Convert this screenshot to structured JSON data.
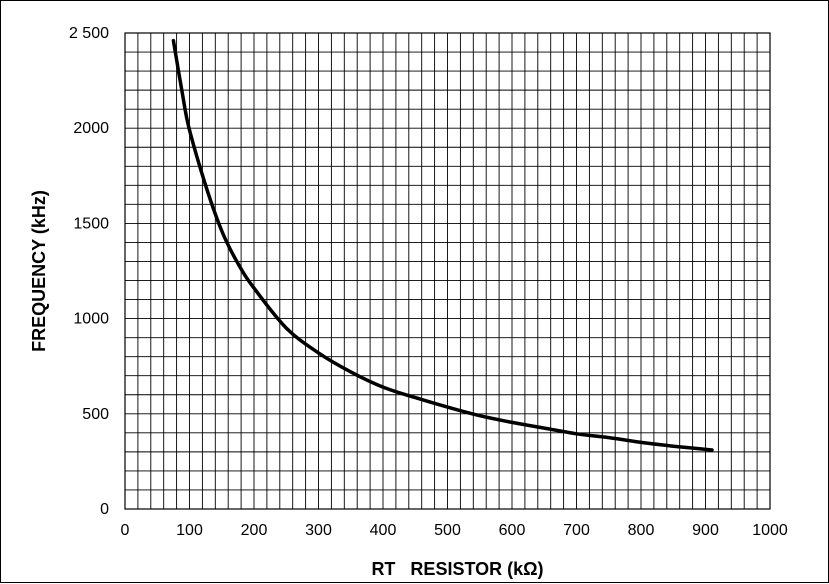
{
  "chart_data": {
    "type": "line",
    "title": "",
    "xlabel": "RT   RESISTOR (kΩ)",
    "ylabel": "FREQUENCY (kHz)",
    "xlim": [
      0,
      1000
    ],
    "ylim": [
      0,
      2500
    ],
    "x_major_ticks": [
      0,
      100,
      200,
      300,
      400,
      500,
      600,
      700,
      800,
      900,
      1000
    ],
    "y_major_ticks": [
      0,
      500,
      1000,
      1500,
      2000,
      2500
    ],
    "x_tick_labels": [
      "0",
      "100",
      "200",
      "300",
      "400",
      "500",
      "600",
      "700",
      "800",
      "900",
      "1000"
    ],
    "y_tick_labels": [
      "0",
      "500",
      "1000",
      "1500",
      "2000",
      "2 500"
    ],
    "x_minor_step": 20,
    "y_minor_step": 100,
    "grid": true,
    "legend": "none",
    "line_color": "#000000",
    "series": [
      {
        "x": [
          75,
          90,
          100,
          125,
          150,
          175,
          200,
          250,
          300,
          350,
          400,
          450,
          500,
          550,
          600,
          650,
          700,
          750,
          800,
          850,
          910
        ],
        "y": [
          2460,
          2160,
          1990,
          1700,
          1460,
          1290,
          1160,
          950,
          820,
          720,
          640,
          585,
          535,
          490,
          455,
          425,
          395,
          375,
          350,
          330,
          310
        ]
      }
    ]
  }
}
